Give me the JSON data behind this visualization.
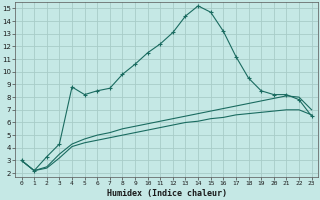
{
  "xlabel": "Humidex (Indice chaleur)",
  "bg_color": "#c5e8e5",
  "grid_color": "#a8ccc8",
  "line_color": "#1a6b60",
  "xlim": [
    -0.5,
    23.5
  ],
  "ylim": [
    1.7,
    15.5
  ],
  "xticks": [
    0,
    1,
    2,
    3,
    4,
    5,
    6,
    7,
    8,
    9,
    10,
    11,
    12,
    13,
    14,
    15,
    16,
    17,
    18,
    19,
    20,
    21,
    22,
    23
  ],
  "yticks": [
    2,
    3,
    4,
    5,
    6,
    7,
    8,
    9,
    10,
    11,
    12,
    13,
    14,
    15
  ],
  "curve1_x": [
    0,
    1,
    2,
    3,
    4,
    5,
    6,
    7,
    8,
    9,
    10,
    11,
    12,
    13,
    14,
    15,
    16,
    17,
    18,
    19,
    20,
    21,
    22,
    23
  ],
  "curve1_y": [
    3.0,
    2.2,
    3.3,
    4.3,
    8.8,
    8.2,
    8.5,
    8.7,
    9.8,
    10.6,
    11.5,
    12.2,
    13.1,
    14.4,
    15.2,
    14.7,
    13.2,
    11.2,
    9.5,
    8.5,
    8.2,
    8.2,
    7.8,
    6.5
  ],
  "curve2_x": [
    0,
    1,
    2,
    3,
    4,
    5,
    6,
    7,
    8,
    9,
    10,
    11,
    12,
    13,
    14,
    15,
    16,
    17,
    18,
    19,
    20,
    21,
    22,
    23
  ],
  "curve2_y": [
    3.0,
    2.2,
    2.5,
    3.5,
    4.3,
    4.7,
    5.0,
    5.2,
    5.5,
    5.7,
    5.9,
    6.1,
    6.3,
    6.5,
    6.7,
    6.9,
    7.1,
    7.3,
    7.5,
    7.7,
    7.9,
    8.1,
    8.0,
    7.0
  ],
  "curve3_x": [
    0,
    1,
    2,
    3,
    4,
    5,
    6,
    7,
    8,
    9,
    10,
    11,
    12,
    13,
    14,
    15,
    16,
    17,
    18,
    19,
    20,
    21,
    22,
    23
  ],
  "curve3_y": [
    3.0,
    2.2,
    2.4,
    3.2,
    4.1,
    4.4,
    4.6,
    4.8,
    5.0,
    5.2,
    5.4,
    5.6,
    5.8,
    6.0,
    6.1,
    6.3,
    6.4,
    6.6,
    6.7,
    6.8,
    6.9,
    7.0,
    7.0,
    6.6
  ]
}
